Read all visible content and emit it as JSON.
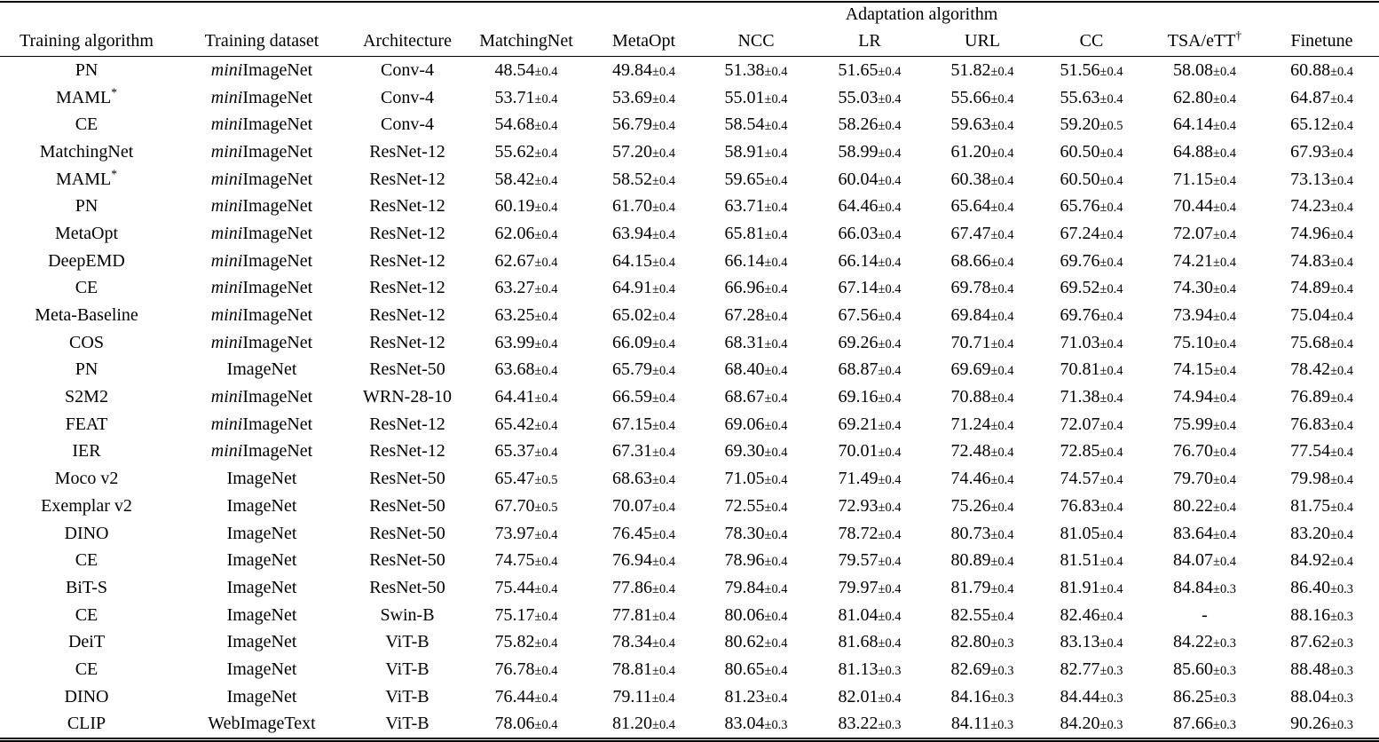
{
  "table": {
    "span_header": "Adaptation algorithm",
    "columns": [
      "Training algorithm",
      "Training dataset",
      "Architecture",
      "MatchingNet",
      "MetaOpt",
      "NCC",
      "LR",
      "URL",
      "CC",
      "TSA/eTT†",
      "Finetune"
    ],
    "rows": [
      {
        "algorithm": "PN",
        "dataset": "miniImageNet",
        "architecture": "Conv-4",
        "results": [
          "48.54±0.4",
          "49.84±0.4",
          "51.38±0.4",
          "51.65±0.4",
          "51.82±0.4",
          "51.56±0.4",
          "58.08±0.4",
          "60.88±0.4"
        ]
      },
      {
        "algorithm": "MAML*",
        "dataset": "miniImageNet",
        "architecture": "Conv-4",
        "results": [
          "53.71±0.4",
          "53.69±0.4",
          "55.01±0.4",
          "55.03±0.4",
          "55.66±0.4",
          "55.63±0.4",
          "62.80±0.4",
          "64.87±0.4"
        ]
      },
      {
        "algorithm": "CE",
        "dataset": "miniImageNet",
        "architecture": "Conv-4",
        "results": [
          "54.68±0.4",
          "56.79±0.4",
          "58.54±0.4",
          "58.26±0.4",
          "59.63±0.4",
          "59.20±0.5",
          "64.14±0.4",
          "65.12±0.4"
        ]
      },
      {
        "algorithm": "MatchingNet",
        "dataset": "miniImageNet",
        "architecture": "ResNet-12",
        "results": [
          "55.62±0.4",
          "57.20±0.4",
          "58.91±0.4",
          "58.99±0.4",
          "61.20±0.4",
          "60.50±0.4",
          "64.88±0.4",
          "67.93±0.4"
        ]
      },
      {
        "algorithm": "MAML*",
        "dataset": "miniImageNet",
        "architecture": "ResNet-12",
        "results": [
          "58.42±0.4",
          "58.52±0.4",
          "59.65±0.4",
          "60.04±0.4",
          "60.38±0.4",
          "60.50±0.4",
          "71.15±0.4",
          "73.13±0.4"
        ]
      },
      {
        "algorithm": "PN",
        "dataset": "miniImageNet",
        "architecture": "ResNet-12",
        "results": [
          "60.19±0.4",
          "61.70±0.4",
          "63.71±0.4",
          "64.46±0.4",
          "65.64±0.4",
          "65.76±0.4",
          "70.44±0.4",
          "74.23±0.4"
        ]
      },
      {
        "algorithm": "MetaOpt",
        "dataset": "miniImageNet",
        "architecture": "ResNet-12",
        "results": [
          "62.06±0.4",
          "63.94±0.4",
          "65.81±0.4",
          "66.03±0.4",
          "67.47±0.4",
          "67.24±0.4",
          "72.07±0.4",
          "74.96±0.4"
        ]
      },
      {
        "algorithm": "DeepEMD",
        "dataset": "miniImageNet",
        "architecture": "ResNet-12",
        "results": [
          "62.67±0.4",
          "64.15±0.4",
          "66.14±0.4",
          "66.14±0.4",
          "68.66±0.4",
          "69.76±0.4",
          "74.21±0.4",
          "74.83±0.4"
        ]
      },
      {
        "algorithm": "CE",
        "dataset": "miniImageNet",
        "architecture": "ResNet-12",
        "results": [
          "63.27±0.4",
          "64.91±0.4",
          "66.96±0.4",
          "67.14±0.4",
          "69.78±0.4",
          "69.52±0.4",
          "74.30±0.4",
          "74.89±0.4"
        ]
      },
      {
        "algorithm": "Meta-Baseline",
        "dataset": "miniImageNet",
        "architecture": "ResNet-12",
        "results": [
          "63.25±0.4",
          "65.02±0.4",
          "67.28±0.4",
          "67.56±0.4",
          "69.84±0.4",
          "69.76±0.4",
          "73.94±0.4",
          "75.04±0.4"
        ]
      },
      {
        "algorithm": "COS",
        "dataset": "miniImageNet",
        "architecture": "ResNet-12",
        "results": [
          "63.99±0.4",
          "66.09±0.4",
          "68.31±0.4",
          "69.26±0.4",
          "70.71±0.4",
          "71.03±0.4",
          "75.10±0.4",
          "75.68±0.4"
        ]
      },
      {
        "algorithm": "PN",
        "dataset": "ImageNet",
        "architecture": "ResNet-50",
        "results": [
          "63.68±0.4",
          "65.79±0.4",
          "68.40±0.4",
          "68.87±0.4",
          "69.69±0.4",
          "70.81±0.4",
          "74.15±0.4",
          "78.42±0.4"
        ]
      },
      {
        "algorithm": "S2M2",
        "dataset": "miniImageNet",
        "architecture": "WRN-28-10",
        "results": [
          "64.41±0.4",
          "66.59±0.4",
          "68.67±0.4",
          "69.16±0.4",
          "70.88±0.4",
          "71.38±0.4",
          "74.94±0.4",
          "76.89±0.4"
        ]
      },
      {
        "algorithm": "FEAT",
        "dataset": "miniImageNet",
        "architecture": "ResNet-12",
        "results": [
          "65.42±0.4",
          "67.15±0.4",
          "69.06±0.4",
          "69.21±0.4",
          "71.24±0.4",
          "72.07±0.4",
          "75.99±0.4",
          "76.83±0.4"
        ]
      },
      {
        "algorithm": "IER",
        "dataset": "miniImageNet",
        "architecture": "ResNet-12",
        "results": [
          "65.37±0.4",
          "67.31±0.4",
          "69.30±0.4",
          "70.01±0.4",
          "72.48±0.4",
          "72.85±0.4",
          "76.70±0.4",
          "77.54±0.4"
        ]
      },
      {
        "algorithm": "Moco v2",
        "dataset": "ImageNet",
        "architecture": "ResNet-50",
        "results": [
          "65.47±0.5",
          "68.63±0.4",
          "71.05±0.4",
          "71.49±0.4",
          "74.46±0.4",
          "74.57±0.4",
          "79.70±0.4",
          "79.98±0.4"
        ]
      },
      {
        "algorithm": "Exemplar v2",
        "dataset": "ImageNet",
        "architecture": "ResNet-50",
        "results": [
          "67.70±0.5",
          "70.07±0.4",
          "72.55±0.4",
          "72.93±0.4",
          "75.26±0.4",
          "76.83±0.4",
          "80.22±0.4",
          "81.75±0.4"
        ]
      },
      {
        "algorithm": "DINO",
        "dataset": "ImageNet",
        "architecture": "ResNet-50",
        "results": [
          "73.97±0.4",
          "76.45±0.4",
          "78.30±0.4",
          "78.72±0.4",
          "80.73±0.4",
          "81.05±0.4",
          "83.64±0.4",
          "83.20±0.4"
        ]
      },
      {
        "algorithm": "CE",
        "dataset": "ImageNet",
        "architecture": "ResNet-50",
        "results": [
          "74.75±0.4",
          "76.94±0.4",
          "78.96±0.4",
          "79.57±0.4",
          "80.89±0.4",
          "81.51±0.4",
          "84.07±0.4",
          "84.92±0.4"
        ]
      },
      {
        "algorithm": "BiT-S",
        "dataset": "ImageNet",
        "architecture": "ResNet-50",
        "results": [
          "75.44±0.4",
          "77.86±0.4",
          "79.84±0.4",
          "79.97±0.4",
          "81.79±0.4",
          "81.91±0.4",
          "84.84±0.3",
          "86.40±0.3"
        ]
      },
      {
        "algorithm": "CE",
        "dataset": "ImageNet",
        "architecture": "Swin-B",
        "results": [
          "75.17±0.4",
          "77.81±0.4",
          "80.06±0.4",
          "81.04±0.4",
          "82.55±0.4",
          "82.46±0.4",
          "-",
          "88.16±0.3"
        ]
      },
      {
        "algorithm": "DeiT",
        "dataset": "ImageNet",
        "architecture": "ViT-B",
        "results": [
          "75.82±0.4",
          "78.34±0.4",
          "80.62±0.4",
          "81.68±0.4",
          "82.80±0.3",
          "83.13±0.4",
          "84.22±0.3",
          "87.62±0.3"
        ]
      },
      {
        "algorithm": "CE",
        "dataset": "ImageNet",
        "architecture": "ViT-B",
        "results": [
          "76.78±0.4",
          "78.81±0.4",
          "80.65±0.4",
          "81.13±0.3",
          "82.69±0.3",
          "82.77±0.3",
          "85.60±0.3",
          "88.48±0.3"
        ]
      },
      {
        "algorithm": "DINO",
        "dataset": "ImageNet",
        "architecture": "ViT-B",
        "results": [
          "76.44±0.4",
          "79.11±0.4",
          "81.23±0.4",
          "82.01±0.4",
          "84.16±0.3",
          "84.44±0.3",
          "86.25±0.3",
          "88.04±0.3"
        ]
      },
      {
        "algorithm": "CLIP",
        "dataset": "WebImageText",
        "architecture": "ViT-B",
        "results": [
          "78.06±0.4",
          "81.20±0.4",
          "83.04±0.3",
          "83.22±0.3",
          "84.11±0.3",
          "84.20±0.3",
          "87.66±0.3",
          "90.26±0.3"
        ]
      }
    ]
  }
}
